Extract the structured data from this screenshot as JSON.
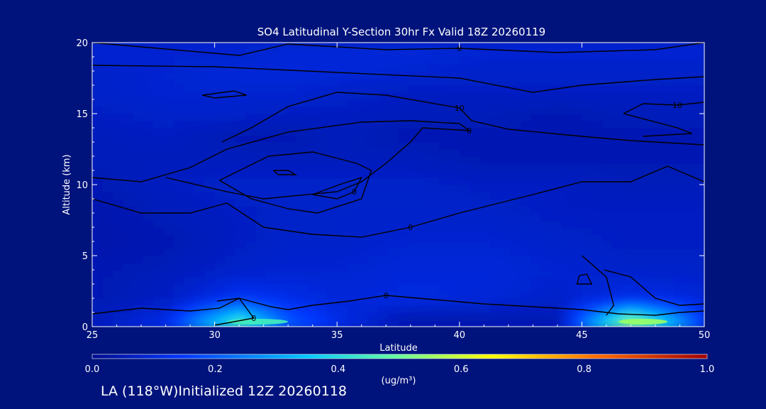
{
  "chart_data": {
    "type": "heatmap",
    "title": "SO4 Latitudinal Y-Section 30hr  Fx Valid 18Z 20260119",
    "xlabel": "Latitude",
    "ylabel": "Altitude (km)",
    "xlim": [
      25,
      50
    ],
    "ylim": [
      0,
      20
    ],
    "x_ticks": [
      25,
      30,
      35,
      40,
      45,
      50
    ],
    "y_ticks": [
      0,
      5,
      10,
      15,
      20
    ],
    "colorbar": {
      "label": "(ug/m³)",
      "min": 0.0,
      "max": 1.0,
      "ticks": [
        "0.0",
        "0.2",
        "0.4",
        "0.6",
        "0.8",
        "1.0"
      ]
    },
    "field_levels": [
      {
        "lat": 25,
        "vals": [
          0.06,
          0.05,
          0.05,
          0.04,
          0.04,
          0.05,
          0.06,
          0.06,
          0.07,
          0.08,
          0.08,
          0.09,
          0.09
        ]
      },
      {
        "lat": 28,
        "vals": [
          0.12,
          0.07,
          0.06,
          0.05,
          0.06,
          0.07,
          0.06,
          0.07,
          0.08,
          0.09,
          0.09,
          0.09,
          0.09
        ]
      },
      {
        "lat": 31,
        "vals": [
          0.45,
          0.14,
          0.08,
          0.07,
          0.07,
          0.08,
          0.06,
          0.05,
          0.08,
          0.09,
          0.1,
          0.09,
          0.09
        ]
      },
      {
        "lat": 33,
        "vals": [
          0.2,
          0.12,
          0.09,
          0.08,
          0.08,
          0.08,
          0.06,
          0.05,
          0.07,
          0.09,
          0.1,
          0.1,
          0.09
        ]
      },
      {
        "lat": 35,
        "vals": [
          0.12,
          0.1,
          0.09,
          0.08,
          0.08,
          0.08,
          0.06,
          0.06,
          0.07,
          0.08,
          0.1,
          0.1,
          0.09
        ]
      },
      {
        "lat": 38,
        "vals": [
          0.04,
          0.11,
          0.1,
          0.09,
          0.08,
          0.08,
          0.06,
          0.05,
          0.06,
          0.07,
          0.09,
          0.1,
          0.09
        ]
      },
      {
        "lat": 41,
        "vals": [
          0.04,
          0.1,
          0.1,
          0.09,
          0.08,
          0.07,
          0.05,
          0.05,
          0.06,
          0.07,
          0.08,
          0.09,
          0.09
        ]
      },
      {
        "lat": 44,
        "vals": [
          0.05,
          0.08,
          0.09,
          0.08,
          0.07,
          0.07,
          0.05,
          0.05,
          0.05,
          0.07,
          0.08,
          0.09,
          0.09
        ]
      },
      {
        "lat": 47,
        "vals": [
          0.55,
          0.12,
          0.08,
          0.07,
          0.07,
          0.06,
          0.05,
          0.05,
          0.06,
          0.07,
          0.08,
          0.09,
          0.09
        ]
      },
      {
        "lat": 50,
        "vals": [
          0.15,
          0.1,
          0.08,
          0.07,
          0.07,
          0.06,
          0.05,
          0.05,
          0.06,
          0.07,
          0.08,
          0.09,
          0.09
        ]
      }
    ],
    "field_altitudes_km": [
      0.3,
      2,
      4,
      6,
      8,
      10,
      12,
      13.5,
      15,
      16.5,
      18,
      19,
      20
    ],
    "contours": [
      {
        "label": "0",
        "points": [
          [
            25,
            20
          ],
          [
            31,
            19.1
          ],
          [
            33,
            19.9
          ],
          [
            37,
            19.5
          ],
          [
            40,
            19.6
          ],
          [
            44,
            19.3
          ],
          [
            48,
            19.5
          ],
          [
            50,
            20
          ]
        ]
      },
      {
        "label": "",
        "points": [
          [
            25,
            18.4
          ],
          [
            30,
            18.3
          ],
          [
            35,
            17.9
          ],
          [
            40,
            17.5
          ],
          [
            43,
            16.5
          ],
          [
            45,
            17.0
          ],
          [
            48,
            17.4
          ],
          [
            50,
            17.6
          ]
        ]
      },
      {
        "label": "",
        "points": [
          [
            29.5,
            16.3
          ],
          [
            30.8,
            16.6
          ],
          [
            31.3,
            16.3
          ],
          [
            30.0,
            16.1
          ],
          [
            29.5,
            16.3
          ]
        ]
      },
      {
        "label": "10",
        "points": [
          [
            30.3,
            13.0
          ],
          [
            31.5,
            14.0
          ],
          [
            33,
            15.5
          ],
          [
            35,
            16.5
          ],
          [
            37,
            16.3
          ],
          [
            40,
            15.4
          ],
          [
            40.5,
            14.5
          ],
          [
            42,
            13.9
          ],
          [
            45,
            13.4
          ],
          [
            47,
            13.1
          ],
          [
            50,
            12.8
          ]
        ]
      },
      {
        "label": "10",
        "points": [
          [
            46.7,
            15.0
          ],
          [
            47.5,
            15.7
          ],
          [
            48.9,
            15.6
          ],
          [
            50,
            15.8
          ]
        ]
      },
      {
        "label": "",
        "points": [
          [
            46.7,
            15.0
          ],
          [
            48.9,
            14.0
          ],
          [
            49.5,
            13.6
          ],
          [
            47.5,
            13.4
          ]
        ]
      },
      {
        "label": "0",
        "points": [
          [
            25,
            10.5
          ],
          [
            27,
            10.2
          ],
          [
            29,
            11.2
          ],
          [
            30.5,
            12.5
          ],
          [
            33,
            13.7
          ],
          [
            36,
            14.4
          ],
          [
            38,
            14.5
          ],
          [
            40,
            14.3
          ],
          [
            40.4,
            13.8
          ],
          [
            38.5,
            14.0
          ],
          [
            38,
            13.0
          ],
          [
            37,
            11.5
          ],
          [
            36,
            10.2
          ],
          [
            35,
            9.5
          ],
          [
            32,
            9.0
          ],
          [
            30.5,
            9.5
          ],
          [
            28,
            10.5
          ]
        ]
      },
      {
        "label": "0",
        "points": [
          [
            25,
            9.0
          ],
          [
            27,
            8.0
          ],
          [
            29,
            8.0
          ],
          [
            30.5,
            8.7
          ],
          [
            32,
            7.0
          ],
          [
            34,
            6.5
          ],
          [
            36,
            6.3
          ],
          [
            38,
            7.0
          ],
          [
            40,
            8.0
          ],
          [
            43,
            9.3
          ],
          [
            45,
            10.2
          ],
          [
            47,
            10.2
          ],
          [
            48.5,
            11.3
          ],
          [
            50,
            10.2
          ]
        ]
      },
      {
        "label": "",
        "points": [
          [
            32.4,
            11.0
          ],
          [
            33.0,
            11.0
          ],
          [
            33.3,
            10.7
          ],
          [
            32.6,
            10.7
          ],
          [
            32.4,
            11.0
          ]
        ]
      },
      {
        "label": "0",
        "points": [
          [
            34.0,
            9.3
          ],
          [
            35.1,
            10.0
          ],
          [
            36.0,
            10.5
          ],
          [
            35.7,
            9.5
          ],
          [
            35.0,
            9.0
          ],
          [
            34.0,
            9.3
          ]
        ]
      },
      {
        "label": "",
        "points": [
          [
            30.2,
            10.3
          ],
          [
            32.2,
            12.0
          ],
          [
            34.0,
            12.3
          ],
          [
            35.8,
            11.5
          ],
          [
            36.4,
            11.0
          ],
          [
            36.0,
            9.0
          ],
          [
            34.2,
            8.0
          ],
          [
            33.0,
            8.3
          ],
          [
            31.5,
            9.0
          ],
          [
            30.2,
            10.3
          ]
        ]
      },
      {
        "label": "",
        "points": [
          [
            45,
            5.0
          ],
          [
            46,
            3.5
          ],
          [
            46.3,
            1.5
          ],
          [
            46,
            0.8
          ]
        ]
      },
      {
        "label": "",
        "points": [
          [
            45.9,
            4.0
          ],
          [
            47.0,
            3.5
          ],
          [
            48.0,
            2.0
          ],
          [
            49,
            1.5
          ],
          [
            50,
            1.6
          ]
        ]
      },
      {
        "label": "",
        "points": [
          [
            44.9,
            3.6
          ],
          [
            45.2,
            3.7
          ],
          [
            45.4,
            3.0
          ],
          [
            44.8,
            3.0
          ],
          [
            44.9,
            3.6
          ]
        ]
      },
      {
        "label": "0",
        "points": [
          [
            25,
            0.9
          ],
          [
            27,
            1.3
          ],
          [
            29,
            1.1
          ],
          [
            30.2,
            1.3
          ],
          [
            31.0,
            2.0
          ],
          [
            32.3,
            1.4
          ],
          [
            33,
            1.2
          ],
          [
            34,
            1.5
          ],
          [
            35.5,
            1.8
          ],
          [
            37,
            2.2
          ],
          [
            39,
            1.9
          ],
          [
            41,
            1.6
          ],
          [
            43,
            1.4
          ],
          [
            45,
            1.2
          ],
          [
            46.5,
            0.9
          ],
          [
            48,
            0.8
          ],
          [
            49,
            1.0
          ],
          [
            50,
            1.1
          ]
        ]
      },
      {
        "label": "0",
        "points": [
          [
            30.1,
            1.8
          ],
          [
            31.0,
            2.0
          ],
          [
            31.6,
            0.6
          ],
          [
            30.0,
            0.1
          ]
        ]
      }
    ]
  },
  "footer": {
    "text": "LA (118°W)Initialized 12Z 20260118"
  },
  "colors": {
    "background": "#00137c",
    "contour": "#000000",
    "colormap": [
      "#000a8c",
      "#0036ff",
      "#00c8ff",
      "#66ff99",
      "#ffff00",
      "#ff6a00",
      "#a00000"
    ]
  }
}
